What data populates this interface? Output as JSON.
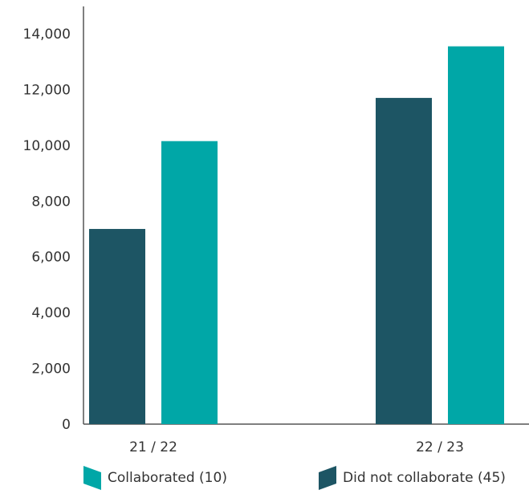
{
  "chart_data": {
    "type": "bar",
    "categories": [
      "21 / 22",
      "22 / 23"
    ],
    "series": [
      {
        "name": "Did not collaborate (45)",
        "values": [
          7000,
          11700
        ],
        "color": "#1d5564"
      },
      {
        "name": "Collaborated (10)",
        "values": [
          10150,
          13550
        ],
        "color": "#00a7a7"
      }
    ],
    "ylim": [
      0,
      15000
    ],
    "yticks": [
      0,
      2000,
      4000,
      6000,
      8000,
      10000,
      12000,
      14000
    ],
    "ytick_labels": [
      "0",
      "2,000",
      "4,000",
      "6,000",
      "8,000",
      "10,000",
      "12,000",
      "14,000"
    ],
    "legend_position": "bottom",
    "grid": false
  },
  "legend": {
    "items": [
      {
        "label": "Collaborated (10)",
        "color": "#00a7a7"
      },
      {
        "label": "Did not collaborate (45)",
        "color": "#1d5564"
      }
    ]
  }
}
